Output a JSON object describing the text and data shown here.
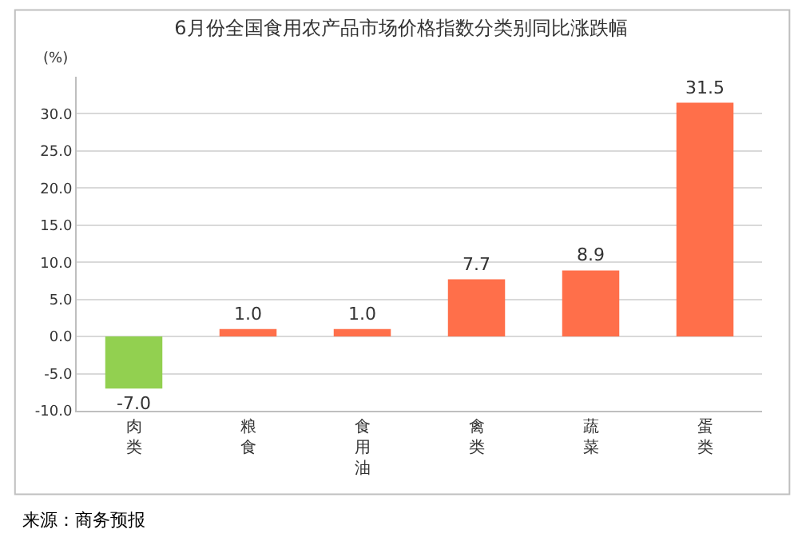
{
  "chart_data": {
    "type": "bar",
    "title": "6月份全国食用农产品市场价格指数分类别同比涨跌幅",
    "ylabel": "(%)",
    "categories": [
      "肉类",
      "粮食",
      "食用油",
      "禽类",
      "蔬菜",
      "蛋类"
    ],
    "values": [
      -7.0,
      1.0,
      1.0,
      7.7,
      8.9,
      31.5
    ],
    "colors": [
      "#92d050",
      "#ff6f4a",
      "#ff6f4a",
      "#ff6f4a",
      "#ff6f4a",
      "#ff6f4a"
    ],
    "value_labels": [
      "-7.0",
      "1.0",
      "1.0",
      "7.7",
      "8.9",
      "31.5"
    ],
    "ylim": [
      -10,
      35
    ],
    "yticks": [
      {
        "value": -10,
        "label": "-10.0"
      },
      {
        "value": -5,
        "label": "-5.0"
      },
      {
        "value": 0,
        "label": "0.0"
      },
      {
        "value": 5,
        "label": "5.0"
      },
      {
        "value": 10,
        "label": "10.0"
      },
      {
        "value": 15,
        "label": "15.0"
      },
      {
        "value": 20,
        "label": "20.0"
      },
      {
        "value": 25,
        "label": "25.0"
      },
      {
        "value": 30,
        "label": "30.0"
      }
    ],
    "grid": "y",
    "legend": false,
    "annotations": [
      "来源：商务预报"
    ]
  }
}
